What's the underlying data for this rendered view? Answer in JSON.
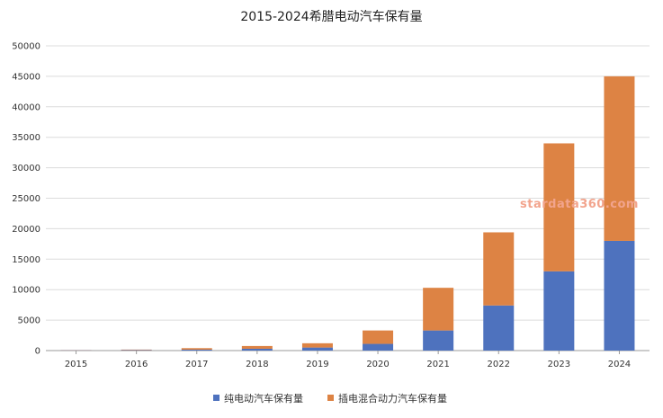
{
  "chart_data": {
    "type": "bar",
    "stacked": true,
    "title": "2015-2024希腊电动汽车保有量",
    "xlabel": "",
    "ylabel": "",
    "categories": [
      "2015",
      "2016",
      "2017",
      "2018",
      "2019",
      "2020",
      "2021",
      "2022",
      "2023",
      "2024"
    ],
    "series": [
      {
        "name": "纯电动汽车保有量",
        "color": "#4e72be",
        "values": [
          50,
          80,
          150,
          300,
          500,
          1100,
          3300,
          7400,
          13000,
          18000
        ]
      },
      {
        "name": "插电混合动力汽车保有量",
        "color": "#dd8344",
        "values": [
          30,
          80,
          250,
          450,
          700,
          2200,
          7000,
          12000,
          21000,
          27000
        ]
      }
    ],
    "ylim": [
      0,
      50000
    ],
    "yticks": [
      0,
      5000,
      10000,
      15000,
      20000,
      25000,
      30000,
      35000,
      40000,
      45000,
      50000
    ],
    "grid": true,
    "legend_position": "bottom-center"
  },
  "watermark": {
    "text": "stardata360.com",
    "color": "#f2a48d"
  }
}
